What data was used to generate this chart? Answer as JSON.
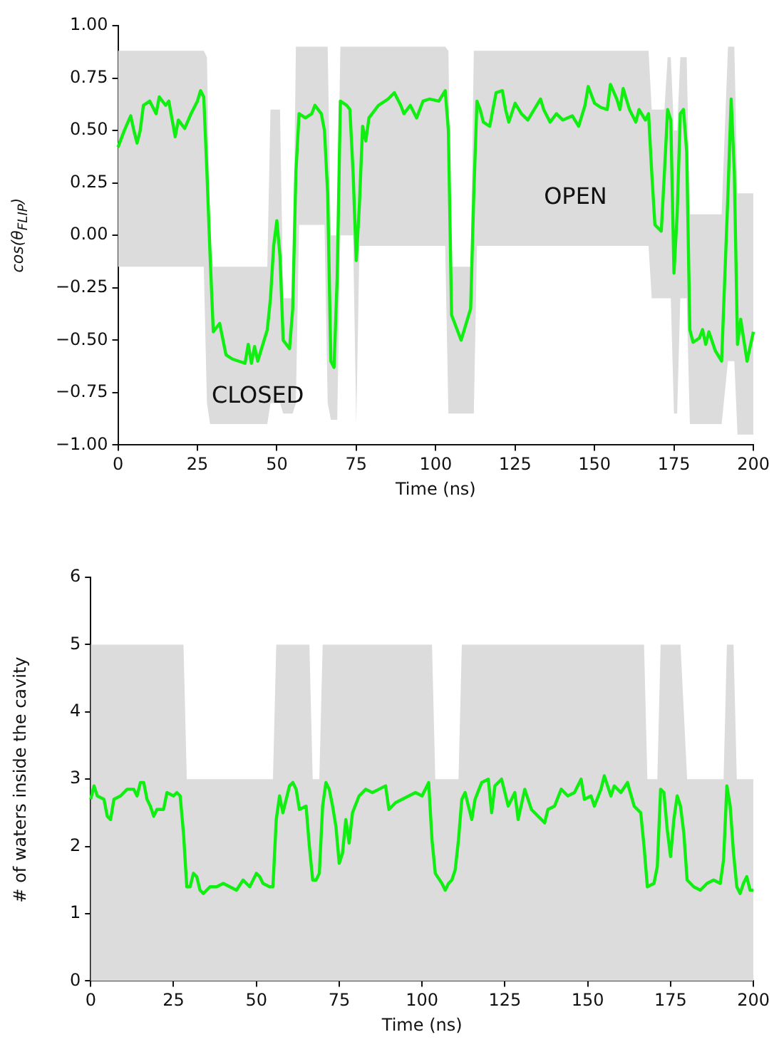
{
  "chart_data": [
    {
      "type": "line",
      "xlabel": "Time (ns)",
      "ylabel": "cos(θ$_{FLIP}$)",
      "xlim": [
        0,
        200
      ],
      "xticks": [
        0,
        25,
        50,
        75,
        100,
        125,
        150,
        175,
        200
      ],
      "ylim": [
        -1,
        1
      ],
      "yticks": [
        {
          "value": -1,
          "label": "−1.00"
        },
        {
          "value": -0.75,
          "label": "−0.75"
        },
        {
          "value": -0.5,
          "label": "−0.50"
        },
        {
          "value": -0.25,
          "label": "−0.25"
        },
        {
          "value": 0,
          "label": "0.00"
        },
        {
          "value": 0.25,
          "label": "0.25"
        },
        {
          "value": 0.5,
          "label": "0.50"
        },
        {
          "value": 0.75,
          "label": "0.75"
        },
        {
          "value": 1,
          "label": "1.00"
        }
      ],
      "grid": false,
      "legend": false,
      "annotations": [
        "CLOSED",
        "OPEN"
      ],
      "series": [
        {
          "color": "#11ee11",
          "x": [
            0,
            2,
            4,
            5,
            6,
            7,
            8,
            10,
            12,
            13,
            15,
            16,
            18,
            19,
            21,
            23,
            25,
            26,
            27,
            28,
            29,
            30,
            32,
            34,
            36,
            38,
            40,
            41,
            42,
            43,
            44,
            45,
            47,
            48,
            49,
            50,
            51,
            52,
            54,
            55,
            56,
            57,
            59,
            61,
            62,
            64,
            65,
            66,
            67,
            68,
            69,
            70,
            72,
            73,
            74,
            75,
            76,
            77,
            78,
            79,
            82,
            85,
            87,
            89,
            90,
            92,
            94,
            96,
            98,
            101,
            103,
            104,
            105,
            106,
            108,
            110,
            111,
            112,
            113,
            114,
            115,
            117,
            119,
            121,
            122,
            123,
            125,
            127,
            129,
            131,
            133,
            134,
            136,
            138,
            140,
            143,
            145,
            147,
            148,
            150,
            152,
            154,
            155,
            157,
            158,
            159,
            161,
            163,
            164,
            166,
            167,
            168,
            169,
            171,
            172,
            173,
            174,
            175,
            176,
            177,
            178,
            179,
            180,
            181,
            183,
            184,
            185,
            186,
            188,
            190,
            192,
            193,
            194,
            195,
            196,
            198,
            200
          ],
          "values": [
            0.42,
            0.5,
            0.57,
            0.5,
            0.44,
            0.5,
            0.62,
            0.64,
            0.58,
            0.66,
            0.62,
            0.64,
            0.47,
            0.55,
            0.51,
            0.58,
            0.64,
            0.69,
            0.66,
            0.3,
            -0.1,
            -0.46,
            -0.42,
            -0.57,
            -0.59,
            -0.6,
            -0.61,
            -0.52,
            -0.61,
            -0.53,
            -0.6,
            -0.55,
            -0.45,
            -0.3,
            -0.05,
            0.07,
            -0.1,
            -0.5,
            -0.54,
            -0.35,
            0.3,
            0.58,
            0.56,
            0.58,
            0.62,
            0.58,
            0.5,
            0.2,
            -0.6,
            -0.63,
            -0.2,
            0.64,
            0.62,
            0.6,
            0.3,
            -0.12,
            0.15,
            0.52,
            0.45,
            0.56,
            0.62,
            0.65,
            0.68,
            0.62,
            0.58,
            0.62,
            0.56,
            0.64,
            0.65,
            0.64,
            0.69,
            0.5,
            -0.38,
            -0.42,
            -0.5,
            -0.4,
            -0.35,
            0.2,
            0.64,
            0.6,
            0.54,
            0.52,
            0.68,
            0.69,
            0.6,
            0.54,
            0.63,
            0.58,
            0.55,
            0.6,
            0.65,
            0.6,
            0.54,
            0.58,
            0.55,
            0.57,
            0.52,
            0.62,
            0.71,
            0.63,
            0.61,
            0.6,
            0.72,
            0.65,
            0.6,
            0.7,
            0.6,
            0.54,
            0.6,
            0.55,
            0.58,
            0.3,
            0.05,
            0.02,
            0.3,
            0.6,
            0.55,
            -0.18,
            0.1,
            0.58,
            0.6,
            0.4,
            -0.45,
            -0.51,
            -0.49,
            -0.45,
            -0.52,
            -0.46,
            -0.55,
            -0.6,
            0.2,
            0.65,
            0.3,
            -0.52,
            -0.4,
            -0.6,
            -0.46
          ],
          "upper": [
            0.88,
            0.88,
            0.88,
            0.88,
            0.88,
            0.88,
            0.88,
            0.88,
            0.88,
            0.88,
            0.88,
            0.88,
            0.88,
            0.88,
            0.88,
            0.88,
            0.88,
            0.88,
            0.88,
            0.85,
            0,
            -0.15,
            -0.15,
            -0.15,
            -0.15,
            -0.15,
            -0.15,
            -0.15,
            -0.15,
            -0.15,
            -0.15,
            -0.15,
            -0.15,
            0.6,
            0.6,
            0.6,
            0.6,
            -0.3,
            -0.3,
            -0.3,
            0.9,
            0.9,
            0.9,
            0.9,
            0.9,
            0.9,
            0.9,
            0.9,
            0,
            0,
            0,
            0.9,
            0.9,
            0.9,
            0.9,
            0.9,
            0.9,
            0.9,
            0.9,
            0.9,
            0.9,
            0.9,
            0.9,
            0.9,
            0.9,
            0.9,
            0.9,
            0.9,
            0.9,
            0.9,
            0.9,
            0.88,
            -0.15,
            -0.15,
            -0.15,
            -0.15,
            -0.15,
            0.88,
            0.88,
            0.88,
            0.88,
            0.88,
            0.88,
            0.88,
            0.88,
            0.88,
            0.88,
            0.88,
            0.88,
            0.88,
            0.88,
            0.88,
            0.88,
            0.88,
            0.88,
            0.88,
            0.88,
            0.88,
            0.88,
            0.88,
            0.88,
            0.88,
            0.88,
            0.88,
            0.88,
            0.88,
            0.88,
            0.88,
            0.88,
            0.88,
            0.88,
            0.6,
            0.6,
            0.6,
            0.6,
            0.85,
            0.85,
            0.5,
            0.5,
            0.85,
            0.85,
            0.85,
            0.1,
            0.1,
            0.1,
            0.1,
            0.1,
            0.1,
            0.1,
            0.1,
            0.9,
            0.9,
            0.9,
            0.2,
            0.2,
            0.2,
            0.2
          ],
          "lower": [
            -0.15,
            -0.15,
            -0.15,
            -0.15,
            -0.15,
            -0.15,
            -0.15,
            -0.15,
            -0.15,
            -0.15,
            -0.15,
            -0.15,
            -0.15,
            -0.15,
            -0.15,
            -0.15,
            -0.15,
            -0.15,
            -0.15,
            -0.8,
            -0.9,
            -0.9,
            -0.9,
            -0.9,
            -0.9,
            -0.9,
            -0.9,
            -0.9,
            -0.9,
            -0.9,
            -0.9,
            -0.9,
            -0.9,
            -0.8,
            -0.8,
            -0.8,
            -0.8,
            -0.85,
            -0.85,
            -0.85,
            -0.8,
            0.05,
            0.05,
            0.05,
            0.05,
            0.05,
            0.05,
            -0.8,
            -0.88,
            -0.88,
            -0.88,
            0,
            0,
            0,
            0,
            -0.9,
            -0.05,
            -0.05,
            -0.05,
            -0.05,
            -0.05,
            -0.05,
            -0.05,
            -0.05,
            -0.05,
            -0.05,
            -0.05,
            -0.05,
            -0.05,
            -0.05,
            -0.05,
            -0.85,
            -0.85,
            -0.85,
            -0.85,
            -0.85,
            -0.85,
            -0.85,
            -0.05,
            -0.05,
            -0.05,
            -0.05,
            -0.05,
            -0.05,
            -0.05,
            -0.05,
            -0.05,
            -0.05,
            -0.05,
            -0.05,
            -0.05,
            -0.05,
            -0.05,
            -0.05,
            -0.05,
            -0.05,
            -0.05,
            -0.05,
            -0.05,
            -0.05,
            -0.05,
            -0.05,
            -0.05,
            -0.05,
            -0.05,
            -0.05,
            -0.05,
            -0.05,
            -0.05,
            -0.05,
            -0.05,
            -0.3,
            -0.3,
            -0.3,
            -0.3,
            -0.3,
            -0.3,
            -0.85,
            -0.85,
            -0.3,
            -0.3,
            -0.3,
            -0.9,
            -0.9,
            -0.9,
            -0.9,
            -0.9,
            -0.9,
            -0.9,
            -0.9,
            -0.6,
            -0.6,
            -0.6,
            -0.95,
            -0.95,
            -0.95,
            -0.95
          ]
        }
      ]
    },
    {
      "type": "line",
      "xlabel": "Time (ns)",
      "ylabel": "# of waters inside the cavity",
      "xlim": [
        0,
        200
      ],
      "xticks": [
        0,
        25,
        50,
        75,
        100,
        125,
        150,
        175,
        200
      ],
      "ylim": [
        0,
        6
      ],
      "yticks": [
        0,
        1,
        2,
        3,
        4,
        5,
        6
      ],
      "grid": false,
      "legend": false,
      "series": [
        {
          "color": "#11ee11",
          "x": [
            0,
            1,
            2,
            4,
            5,
            6,
            7,
            9,
            11,
            13,
            14,
            15,
            16,
            17,
            18,
            19,
            20,
            22,
            23,
            25,
            26,
            27,
            28,
            29,
            30,
            31,
            32,
            33,
            34,
            36,
            38,
            40,
            42,
            44,
            46,
            48,
            50,
            51,
            52,
            54,
            55,
            56,
            57,
            58,
            60,
            61,
            62,
            63,
            65,
            66,
            67,
            68,
            69,
            70,
            71,
            72,
            73,
            74,
            75,
            76,
            77,
            78,
            79,
            81,
            83,
            85,
            87,
            89,
            90,
            92,
            94,
            96,
            98,
            100,
            102,
            103,
            104,
            106,
            107,
            108,
            109,
            110,
            111,
            112,
            113,
            114,
            115,
            116,
            118,
            120,
            121,
            122,
            124,
            125,
            126,
            128,
            129,
            131,
            133,
            135,
            137,
            138,
            140,
            142,
            144,
            146,
            148,
            149,
            151,
            152,
            154,
            155,
            157,
            158,
            160,
            162,
            164,
            166,
            167,
            168,
            170,
            171,
            172,
            173,
            174,
            175,
            176,
            177,
            178,
            179,
            180,
            182,
            184,
            186,
            188,
            190,
            191,
            192,
            193,
            194,
            195,
            196,
            197,
            198,
            199,
            200
          ],
          "values": [
            2.7,
            2.9,
            2.75,
            2.7,
            2.45,
            2.4,
            2.7,
            2.75,
            2.85,
            2.85,
            2.75,
            2.95,
            2.95,
            2.7,
            2.6,
            2.45,
            2.55,
            2.55,
            2.8,
            2.75,
            2.8,
            2.75,
            2.2,
            1.4,
            1.4,
            1.6,
            1.55,
            1.35,
            1.3,
            1.4,
            1.4,
            1.45,
            1.4,
            1.35,
            1.5,
            1.4,
            1.6,
            1.55,
            1.45,
            1.4,
            1.4,
            2.4,
            2.75,
            2.5,
            2.9,
            2.95,
            2.85,
            2.55,
            2.6,
            2,
            1.5,
            1.5,
            1.6,
            2.6,
            2.95,
            2.85,
            2.6,
            2.3,
            1.75,
            1.9,
            2.4,
            2.05,
            2.5,
            2.75,
            2.85,
            2.8,
            2.85,
            2.9,
            2.55,
            2.65,
            2.7,
            2.75,
            2.8,
            2.75,
            2.95,
            2.1,
            1.6,
            1.45,
            1.35,
            1.45,
            1.5,
            1.65,
            2.1,
            2.7,
            2.8,
            2.6,
            2.4,
            2.7,
            2.95,
            3,
            2.5,
            2.9,
            3,
            2.8,
            2.6,
            2.8,
            2.4,
            2.85,
            2.55,
            2.45,
            2.35,
            2.55,
            2.6,
            2.85,
            2.75,
            2.8,
            3,
            2.7,
            2.75,
            2.6,
            2.85,
            3.05,
            2.75,
            2.9,
            2.8,
            2.95,
            2.6,
            2.5,
            2,
            1.4,
            1.45,
            1.7,
            2.85,
            2.8,
            2.25,
            1.85,
            2.4,
            2.75,
            2.6,
            2.2,
            1.5,
            1.4,
            1.35,
            1.45,
            1.5,
            1.45,
            1.8,
            2.9,
            2.6,
            1.9,
            1.4,
            1.3,
            1.45,
            1.55,
            1.35,
            1.35
          ],
          "upper": [
            5,
            5,
            5,
            5,
            5,
            5,
            5,
            5,
            5,
            5,
            5,
            5,
            5,
            5,
            5,
            5,
            5,
            5,
            5,
            5,
            5,
            5,
            5,
            3,
            3,
            3,
            3,
            3,
            3,
            3,
            3,
            3,
            3,
            3,
            3,
            3,
            3,
            3,
            3,
            3,
            3,
            5,
            5,
            5,
            5,
            5,
            5,
            5,
            5,
            5,
            3,
            3,
            3,
            5,
            5,
            5,
            5,
            5,
            5,
            5,
            5,
            5,
            5,
            5,
            5,
            5,
            5,
            5,
            5,
            5,
            5,
            5,
            5,
            5,
            5,
            5,
            3,
            3,
            3,
            3,
            3,
            3,
            3,
            5,
            5,
            5,
            5,
            5,
            5,
            5,
            5,
            5,
            5,
            5,
            5,
            5,
            5,
            5,
            5,
            5,
            5,
            5,
            5,
            5,
            5,
            5,
            5,
            5,
            5,
            5,
            5,
            5,
            5,
            5,
            5,
            5,
            5,
            5,
            5,
            3,
            3,
            3,
            5,
            5,
            5,
            5,
            5,
            5,
            5,
            4,
            3,
            3,
            3,
            3,
            3,
            3,
            3,
            5,
            5,
            5,
            3,
            3,
            3,
            3,
            3,
            3
          ],
          "lower": [
            0,
            0,
            0,
            0,
            0,
            0,
            0,
            0,
            0,
            0,
            0,
            0,
            0,
            0,
            0,
            0,
            0,
            0,
            0,
            0,
            0,
            0,
            0,
            0,
            0,
            0,
            0,
            0,
            0,
            0,
            0,
            0,
            0,
            0,
            0,
            0,
            0,
            0,
            0,
            0,
            0,
            0,
            0,
            0,
            0,
            0,
            0,
            0,
            0,
            0,
            0,
            0,
            0,
            0,
            0,
            0,
            0,
            0,
            0,
            0,
            0,
            0,
            0,
            0,
            0,
            0,
            0,
            0,
            0,
            0,
            0,
            0,
            0,
            0,
            0,
            0,
            0,
            0,
            0,
            0,
            0,
            0,
            0,
            0,
            0,
            0,
            0,
            0,
            0,
            0,
            0,
            0,
            0,
            0,
            0,
            0,
            0,
            0,
            0,
            0,
            0,
            0,
            0,
            0,
            0,
            0,
            0,
            0,
            0,
            0,
            0,
            0,
            0,
            0,
            0,
            0,
            0,
            0,
            0,
            0,
            0,
            0,
            0,
            0,
            0,
            0,
            0,
            0,
            0,
            0,
            0,
            0,
            0,
            0,
            0,
            0,
            0,
            0,
            0,
            0,
            0,
            0,
            0,
            0,
            0,
            0
          ]
        }
      ]
    }
  ]
}
